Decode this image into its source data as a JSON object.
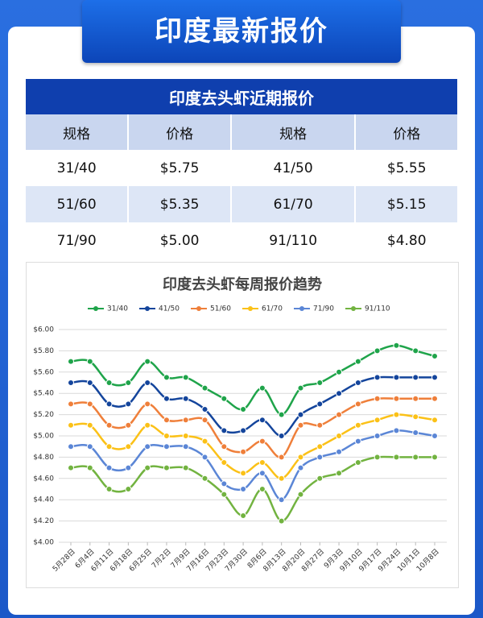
{
  "header": {
    "title": "印度最新报价"
  },
  "table": {
    "title": "印度去头虾近期报价",
    "columns": [
      "规格",
      "价格",
      "规格",
      "价格"
    ],
    "rows": [
      [
        "31/40",
        "$5.75",
        "41/50",
        "$5.55"
      ],
      [
        "51/60",
        "$5.35",
        "61/70",
        "$5.15"
      ],
      [
        "71/90",
        "$5.00",
        "91/110",
        "$4.80"
      ]
    ]
  },
  "chart_data": {
    "type": "line",
    "title": "印度去头虾每周报价趋势",
    "categories": [
      "5月28日",
      "6月4日",
      "6月11日",
      "6月18日",
      "6月25日",
      "7月2日",
      "7月9日",
      "7月16日",
      "7月23日",
      "7月30日",
      "8月6日",
      "8月13日",
      "8月20日",
      "8月27日",
      "9月3日",
      "9月10日",
      "9月17日",
      "9月24日",
      "10月1日",
      "10月8日"
    ],
    "series": [
      {
        "name": "31/40",
        "color": "#1fa44a",
        "values": [
          5.7,
          5.7,
          5.5,
          5.5,
          5.7,
          5.55,
          5.55,
          5.45,
          5.35,
          5.25,
          5.45,
          5.2,
          5.45,
          5.5,
          5.6,
          5.7,
          5.8,
          5.85,
          5.8,
          5.75
        ]
      },
      {
        "name": "41/50",
        "color": "#14459c",
        "values": [
          5.5,
          5.5,
          5.3,
          5.3,
          5.5,
          5.35,
          5.35,
          5.25,
          5.05,
          5.05,
          5.15,
          5.0,
          5.2,
          5.3,
          5.4,
          5.5,
          5.55,
          5.55,
          5.55,
          5.55
        ]
      },
      {
        "name": "51/60",
        "color": "#ef7f3a",
        "values": [
          5.3,
          5.3,
          5.1,
          5.1,
          5.3,
          5.15,
          5.15,
          5.15,
          4.9,
          4.85,
          4.95,
          4.8,
          5.1,
          5.1,
          5.2,
          5.3,
          5.35,
          5.35,
          5.35,
          5.35
        ]
      },
      {
        "name": "61/70",
        "color": "#fbc117",
        "values": [
          5.1,
          5.1,
          4.9,
          4.9,
          5.1,
          5.0,
          5.0,
          4.95,
          4.75,
          4.65,
          4.75,
          4.6,
          4.8,
          4.9,
          5.0,
          5.1,
          5.15,
          5.2,
          5.18,
          5.15
        ]
      },
      {
        "name": "71/90",
        "color": "#5b86d6",
        "values": [
          4.9,
          4.9,
          4.7,
          4.7,
          4.9,
          4.9,
          4.9,
          4.8,
          4.55,
          4.5,
          4.65,
          4.4,
          4.7,
          4.8,
          4.85,
          4.95,
          5.0,
          5.05,
          5.03,
          5.0
        ]
      },
      {
        "name": "91/110",
        "color": "#72b340",
        "values": [
          4.7,
          4.7,
          4.5,
          4.5,
          4.7,
          4.7,
          4.7,
          4.6,
          4.45,
          4.25,
          4.5,
          4.2,
          4.45,
          4.6,
          4.65,
          4.75,
          4.8,
          4.8,
          4.8,
          4.8
        ]
      }
    ],
    "ylim": [
      4,
      6
    ],
    "yticks": [
      {
        "value": 4,
        "label": "$4.00"
      },
      {
        "value": 4.2,
        "label": "$4.20"
      },
      {
        "value": 4.4,
        "label": "$4.40"
      },
      {
        "value": 4.6,
        "label": "$4.60"
      },
      {
        "value": 4.8,
        "label": "$4.80"
      },
      {
        "value": 5,
        "label": "$5.00"
      },
      {
        "value": 5.2,
        "label": "$5.20"
      },
      {
        "value": 5.4,
        "label": "$5.40"
      },
      {
        "value": 5.6,
        "label": "$5.60"
      },
      {
        "value": 5.8,
        "label": "$5.80"
      },
      {
        "value": 6,
        "label": "$6.00"
      }
    ],
    "grid": true
  }
}
